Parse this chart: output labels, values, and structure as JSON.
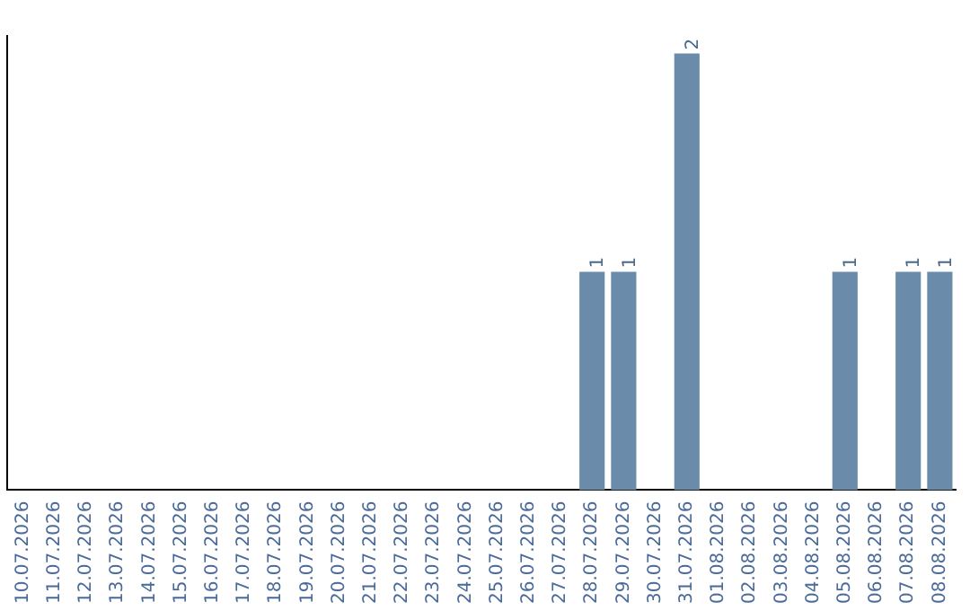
{
  "chart_data": {
    "type": "bar",
    "categories": [
      "10.07.2026",
      "11.07.2026",
      "12.07.2026",
      "13.07.2026",
      "14.07.2026",
      "15.07.2026",
      "16.07.2026",
      "17.07.2026",
      "18.07.2026",
      "19.07.2026",
      "20.07.2026",
      "21.07.2026",
      "22.07.2026",
      "23.07.2026",
      "24.07.2026",
      "25.07.2026",
      "26.07.2026",
      "27.07.2026",
      "28.07.2026",
      "29.07.2026",
      "30.07.2026",
      "31.07.2026",
      "01.08.2026",
      "02.08.2026",
      "03.08.2026",
      "04.08.2026",
      "05.08.2026",
      "06.08.2026",
      "07.08.2026",
      "08.08.2026"
    ],
    "values": [
      null,
      null,
      null,
      null,
      null,
      null,
      null,
      null,
      null,
      null,
      null,
      null,
      null,
      null,
      null,
      null,
      null,
      null,
      1,
      1,
      null,
      2,
      null,
      null,
      null,
      null,
      1,
      null,
      1,
      1
    ],
    "data_labels": true,
    "ylim": [
      0,
      2.08
    ],
    "tick_labels": "x",
    "color": "#6b8bab",
    "grid": false,
    "legend": false
  }
}
